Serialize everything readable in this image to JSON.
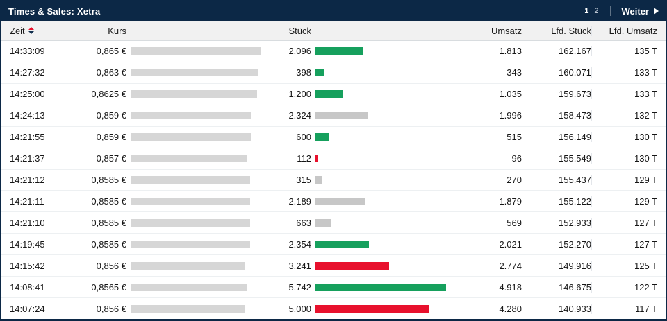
{
  "titlebar": {
    "title": "Times & Sales: Xetra",
    "page_numbers": [
      "1",
      "2"
    ],
    "next_label": "Weiter"
  },
  "table": {
    "columns": [
      "Zeit",
      "Kurs",
      "Stück",
      "Umsatz",
      "Lfd. Stück",
      "Lfd. Umsatz"
    ],
    "sorted_column": "Zeit",
    "rows": [
      {
        "zeit": "14:33:09",
        "kurs": "0,865 €",
        "kurs_n": 0.865,
        "stueck": "2.096",
        "stueck_n": 2096,
        "dir": "up",
        "umsatz": "1.813",
        "lfd_stueck": "162.167",
        "lfd_umsatz": "135 T"
      },
      {
        "zeit": "14:27:32",
        "kurs": "0,863 €",
        "kurs_n": 0.863,
        "stueck": "398",
        "stueck_n": 398,
        "dir": "up",
        "umsatz": "343",
        "lfd_stueck": "160.071",
        "lfd_umsatz": "133 T"
      },
      {
        "zeit": "14:25:00",
        "kurs": "0,8625 €",
        "kurs_n": 0.8625,
        "stueck": "1.200",
        "stueck_n": 1200,
        "dir": "up",
        "umsatz": "1.035",
        "lfd_stueck": "159.673",
        "lfd_umsatz": "133 T"
      },
      {
        "zeit": "14:24:13",
        "kurs": "0,859 €",
        "kurs_n": 0.859,
        "stueck": "2.324",
        "stueck_n": 2324,
        "dir": "neutral",
        "umsatz": "1.996",
        "lfd_stueck": "158.473",
        "lfd_umsatz": "132 T"
      },
      {
        "zeit": "14:21:55",
        "kurs": "0,859 €",
        "kurs_n": 0.859,
        "stueck": "600",
        "stueck_n": 600,
        "dir": "up",
        "umsatz": "515",
        "lfd_stueck": "156.149",
        "lfd_umsatz": "130 T"
      },
      {
        "zeit": "14:21:37",
        "kurs": "0,857 €",
        "kurs_n": 0.857,
        "stueck": "112",
        "stueck_n": 112,
        "dir": "down",
        "umsatz": "96",
        "lfd_stueck": "155.549",
        "lfd_umsatz": "130 T"
      },
      {
        "zeit": "14:21:12",
        "kurs": "0,8585 €",
        "kurs_n": 0.8585,
        "stueck": "315",
        "stueck_n": 315,
        "dir": "neutral",
        "umsatz": "270",
        "lfd_stueck": "155.437",
        "lfd_umsatz": "129 T"
      },
      {
        "zeit": "14:21:11",
        "kurs": "0,8585 €",
        "kurs_n": 0.8585,
        "stueck": "2.189",
        "stueck_n": 2189,
        "dir": "neutral",
        "umsatz": "1.879",
        "lfd_stueck": "155.122",
        "lfd_umsatz": "129 T"
      },
      {
        "zeit": "14:21:10",
        "kurs": "0,8585 €",
        "kurs_n": 0.8585,
        "stueck": "663",
        "stueck_n": 663,
        "dir": "neutral",
        "umsatz": "569",
        "lfd_stueck": "152.933",
        "lfd_umsatz": "127 T"
      },
      {
        "zeit": "14:19:45",
        "kurs": "0,8585 €",
        "kurs_n": 0.8585,
        "stueck": "2.354",
        "stueck_n": 2354,
        "dir": "up",
        "umsatz": "2.021",
        "lfd_stueck": "152.270",
        "lfd_umsatz": "127 T"
      },
      {
        "zeit": "14:15:42",
        "kurs": "0,856 €",
        "kurs_n": 0.856,
        "stueck": "3.241",
        "stueck_n": 3241,
        "dir": "down",
        "umsatz": "2.774",
        "lfd_stueck": "149.916",
        "lfd_umsatz": "125 T"
      },
      {
        "zeit": "14:08:41",
        "kurs": "0,8565 €",
        "kurs_n": 0.8565,
        "stueck": "5.742",
        "stueck_n": 5742,
        "dir": "up",
        "umsatz": "4.918",
        "lfd_stueck": "146.675",
        "lfd_umsatz": "122 T"
      },
      {
        "zeit": "14:07:24",
        "kurs": "0,856 €",
        "kurs_n": 0.856,
        "stueck": "5.000",
        "stueck_n": 5000,
        "dir": "down",
        "umsatz": "4.280",
        "lfd_stueck": "140.933",
        "lfd_umsatz": "117 T"
      }
    ]
  },
  "colors": {
    "up": "#16a05d",
    "down": "#e8112d",
    "neutral": "#c7c7c7",
    "kurs_bar": "#d6d6d6",
    "titlebar_bg": "#0c2846"
  }
}
